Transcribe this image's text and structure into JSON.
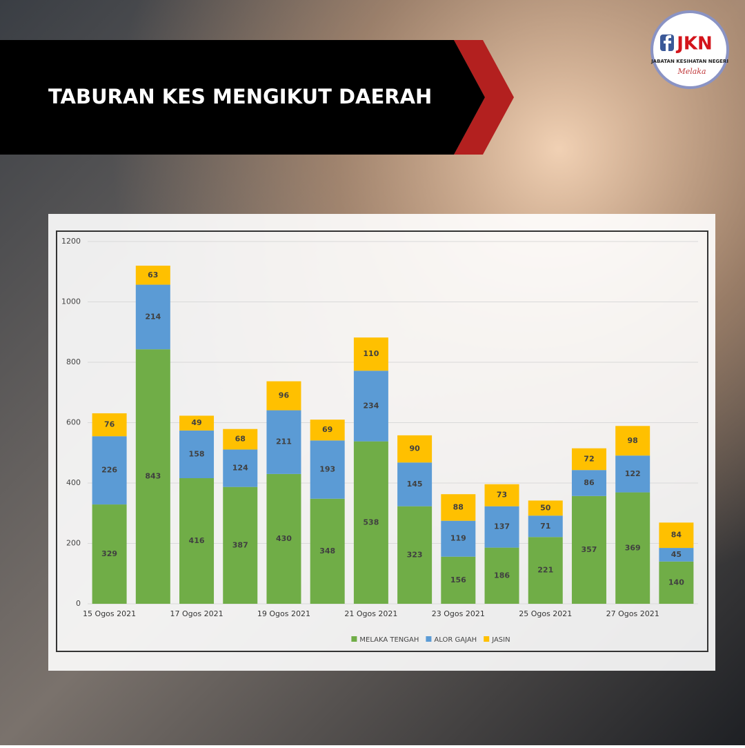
{
  "header": {
    "title": "TABURAN KES MENGIKUT DAERAH"
  },
  "logo": {
    "brand": "JKN",
    "name": "JABATAN KESIHATAN NEGERI",
    "state": "Melaka"
  },
  "chart_data": {
    "type": "stacked_bar",
    "categories": [
      "15 Ogos 2021",
      null,
      "17 Ogos 2021",
      null,
      "19 Ogos 2021",
      null,
      "21 Ogos 2021",
      null,
      "23 Ogos 2021",
      null,
      "25 Ogos 2021",
      null,
      "27 Ogos 2021",
      null
    ],
    "series": [
      {
        "name": "MELAKA TENGAH",
        "color": "#70ad47",
        "values": [
          329,
          843,
          416,
          387,
          430,
          348,
          538,
          323,
          156,
          186,
          221,
          357,
          369,
          140
        ]
      },
      {
        "name": "ALOR GAJAH",
        "color": "#5b9bd5",
        "values": [
          226,
          214,
          158,
          124,
          211,
          193,
          234,
          145,
          119,
          137,
          71,
          86,
          122,
          45
        ]
      },
      {
        "name": "JASIN",
        "color": "#ffc000",
        "values": [
          76,
          63,
          49,
          68,
          96,
          69,
          110,
          90,
          88,
          73,
          50,
          72,
          98,
          84
        ]
      }
    ],
    "ylim": [
      0,
      1200
    ],
    "yticks": [
      0,
      200,
      400,
      600,
      800,
      1000,
      1200
    ],
    "grid": true,
    "legend": "bottom"
  }
}
